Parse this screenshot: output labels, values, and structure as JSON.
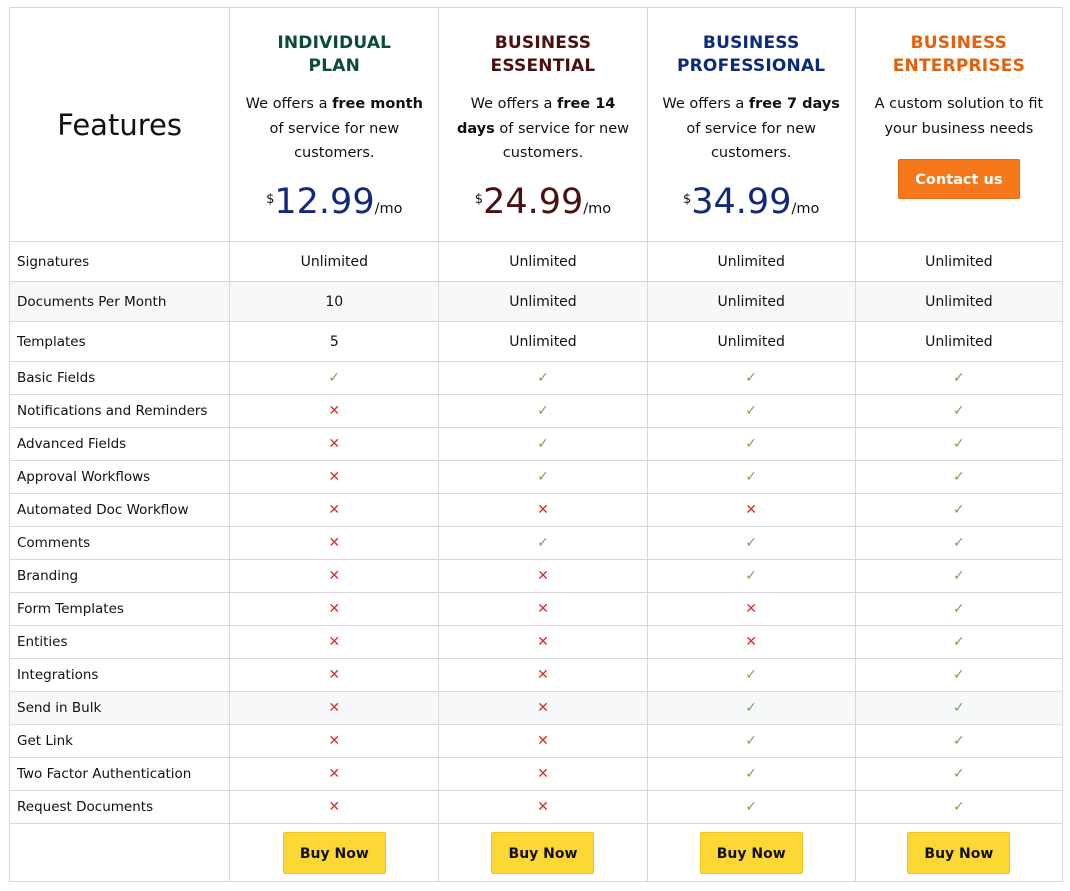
{
  "header": {
    "features_label": "Features"
  },
  "plans": [
    {
      "title_line1": "INDIVIDUAL",
      "title_line2": "PLAN",
      "title_color": "#0d4a3a",
      "desc_pre": "We offers a ",
      "desc_bold": "free month",
      "desc_post": " of service for new customers.",
      "currency": "$",
      "price": "12.99",
      "period": "/mo",
      "price_color": "#14287a",
      "buy_label": "Buy Now"
    },
    {
      "title_line1": "BUSINESS",
      "title_line2": "ESSENTIAL",
      "title_color": "#4a1010",
      "desc_pre": "We offers a ",
      "desc_bold": "free 14 days",
      "desc_post": " of service for new customers.",
      "currency": "$",
      "price": "24.99",
      "period": "/mo",
      "price_color": "#4a1010",
      "buy_label": "Buy Now"
    },
    {
      "title_line1": "BUSINESS",
      "title_line2": "PROFESSIONAL",
      "title_color": "#0b2a78",
      "desc_pre": "We offers a ",
      "desc_bold": "free 7 days",
      "desc_post": " of service for new customers.",
      "currency": "$",
      "price": "34.99",
      "period": "/mo",
      "price_color": "#14287a",
      "buy_label": "Buy Now"
    },
    {
      "title_line1": "BUSINESS",
      "title_line2": "ENTERPRISES",
      "title_color": "#e3600c",
      "desc_pre": "A custom solution to fit your business needs",
      "desc_bold": "",
      "desc_post": "",
      "contact_label": "Contact us",
      "contact_color": "#f7781a",
      "buy_label": "Buy Now"
    }
  ],
  "value_rows": [
    {
      "feature": "Signatures",
      "values": [
        "Unlimited",
        "Unlimited",
        "Unlimited",
        "Unlimited"
      ],
      "shaded": false
    },
    {
      "feature": "Documents Per Month",
      "values": [
        "10",
        "Unlimited",
        "Unlimited",
        "Unlimited"
      ],
      "shaded": true
    },
    {
      "feature": "Templates",
      "values": [
        "5",
        "Unlimited",
        "Unlimited",
        "Unlimited"
      ],
      "shaded": false
    }
  ],
  "check_rows": [
    {
      "feature": "Basic Fields",
      "included": [
        true,
        true,
        true,
        true
      ]
    },
    {
      "feature": "Notifications and Reminders",
      "included": [
        false,
        true,
        true,
        true
      ]
    },
    {
      "feature": "Advanced Fields",
      "included": [
        false,
        true,
        true,
        true
      ]
    },
    {
      "feature": "Approval Workflows",
      "included": [
        false,
        true,
        true,
        true
      ]
    },
    {
      "feature": "Automated Doc Workflow",
      "included": [
        false,
        false,
        false,
        true
      ]
    },
    {
      "feature": "Comments",
      "included": [
        false,
        true,
        true,
        true
      ]
    },
    {
      "feature": "Branding",
      "included": [
        false,
        false,
        true,
        true
      ]
    },
    {
      "feature": "Form Templates",
      "included": [
        false,
        false,
        false,
        true
      ]
    },
    {
      "feature": "Entities",
      "included": [
        false,
        false,
        false,
        true
      ]
    },
    {
      "feature": "Integrations",
      "included": [
        false,
        false,
        true,
        true
      ]
    },
    {
      "feature": "Send in Bulk",
      "included": [
        false,
        false,
        true,
        true
      ],
      "shaded": true
    },
    {
      "feature": "Get Link",
      "included": [
        false,
        false,
        true,
        true
      ]
    },
    {
      "feature": "Two Factor Authentication",
      "included": [
        false,
        false,
        true,
        true
      ]
    },
    {
      "feature": "Request Documents",
      "included": [
        false,
        false,
        true,
        true
      ]
    }
  ],
  "icons": {
    "included": "checkmark-icon",
    "excluded": "cross-icon",
    "check_glyph": "✓",
    "cross_glyph": "✕"
  }
}
